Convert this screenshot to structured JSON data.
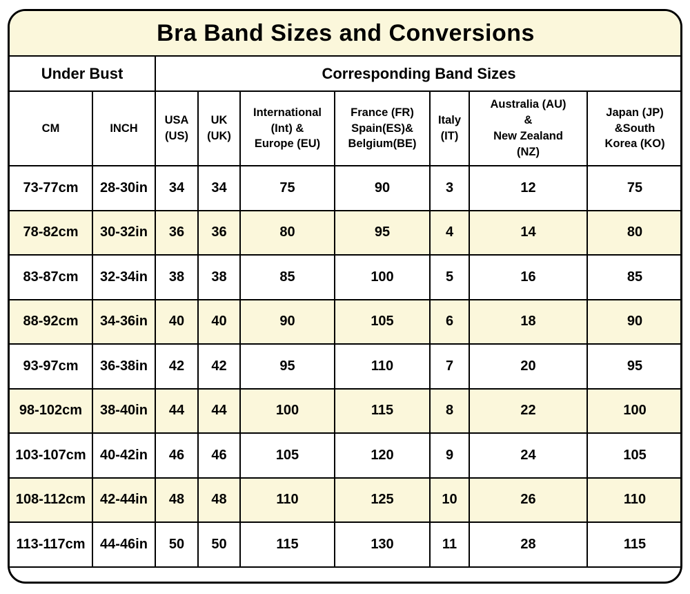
{
  "title": "Bra Band Sizes and Conversions",
  "group_headers": [
    {
      "label": "Under Bust",
      "span": 2
    },
    {
      "label": "Corresponding Band Sizes",
      "span": 7
    }
  ],
  "columns": [
    {
      "name": "cm",
      "display": "CM"
    },
    {
      "name": "inch",
      "display": "INCH"
    },
    {
      "name": "usa",
      "display": "USA\n(US)"
    },
    {
      "name": "uk",
      "display": "UK\n(UK)"
    },
    {
      "name": "international-europe",
      "display": "International\n(Int) &\nEurope (EU)"
    },
    {
      "name": "france-spain-belgium",
      "display": "France (FR)\nSpain(ES)&\nBelgium(BE)"
    },
    {
      "name": "italy",
      "display": "Italy\n(IT)"
    },
    {
      "name": "australia-new-zealand",
      "display": "Australia (AU)\n&\nNew Zealand\n(NZ)"
    },
    {
      "name": "japan-south-korea",
      "display": "Japan (JP)\n&South\nKorea (KO)"
    }
  ],
  "chart_data": {
    "type": "table",
    "title": "Bra Band Sizes and Conversions",
    "column_groups": [
      {
        "label": "Under Bust",
        "span": 2
      },
      {
        "label": "Corresponding Band Sizes",
        "span": 7
      }
    ],
    "columns": [
      "CM",
      "INCH",
      "USA (US)",
      "UK (UK)",
      "International (Int) & Europe (EU)",
      "France (FR) Spain(ES)& Belgium(BE)",
      "Italy (IT)",
      "Australia (AU) & New Zealand (NZ)",
      "Japan (JP) &South Korea (KO)"
    ],
    "rows": [
      [
        "73-77cm",
        "28-30in",
        "34",
        "34",
        "75",
        "90",
        "3",
        "12",
        "75"
      ],
      [
        "78-82cm",
        "30-32in",
        "36",
        "36",
        "80",
        "95",
        "4",
        "14",
        "80"
      ],
      [
        "83-87cm",
        "32-34in",
        "38",
        "38",
        "85",
        "100",
        "5",
        "16",
        "85"
      ],
      [
        "88-92cm",
        "34-36in",
        "40",
        "40",
        "90",
        "105",
        "6",
        "18",
        "90"
      ],
      [
        "93-97cm",
        "36-38in",
        "42",
        "42",
        "95",
        "110",
        "7",
        "20",
        "95"
      ],
      [
        "98-102cm",
        "38-40in",
        "44",
        "44",
        "100",
        "115",
        "8",
        "22",
        "100"
      ],
      [
        "103-107cm",
        "40-42in",
        "46",
        "46",
        "105",
        "120",
        "9",
        "24",
        "105"
      ],
      [
        "108-112cm",
        "42-44in",
        "48",
        "48",
        "110",
        "125",
        "10",
        "26",
        "110"
      ],
      [
        "113-117cm",
        "44-46in",
        "50",
        "50",
        "115",
        "130",
        "11",
        "28",
        "115"
      ]
    ],
    "layout": {
      "striped_rows": "even rows cream, odd rows white",
      "grid": true
    }
  },
  "colors": {
    "stripe_cream": "#FBF7DB",
    "title_background": "#FBF7DB",
    "row_white": "#FFFFFF",
    "border": "#000000",
    "text": "#000000"
  }
}
